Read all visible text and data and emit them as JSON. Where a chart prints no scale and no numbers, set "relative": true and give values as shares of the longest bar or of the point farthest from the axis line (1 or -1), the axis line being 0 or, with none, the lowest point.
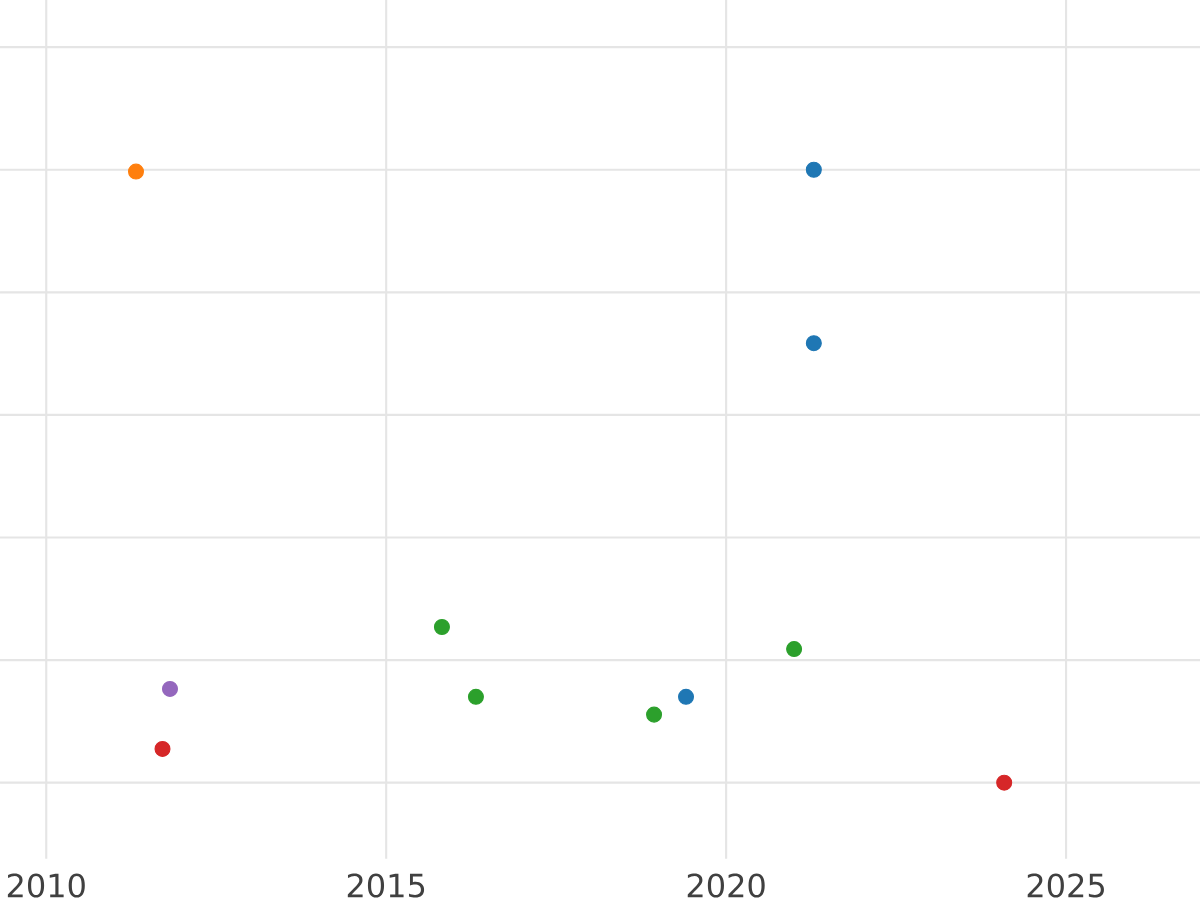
{
  "chart_data": {
    "type": "scatter",
    "relative": true,
    "xlim": [
      2009.32,
      2026.97
    ],
    "xticks": [
      2010,
      2015,
      2020,
      2025
    ],
    "grid": true,
    "tick_labels": "x",
    "series": [
      {
        "color": "#1f77b4",
        "x": [
          2021.29,
          2021.29,
          2019.41
        ],
        "values": [
          1.0,
          0.717,
          0.14
        ]
      },
      {
        "color": "#ff7f0e",
        "x": [
          2011.32
        ],
        "values": [
          0.997
        ]
      },
      {
        "color": "#2ca02c",
        "x": [
          2015.82,
          2016.32,
          2018.94,
          2021.0
        ],
        "values": [
          0.254,
          0.14,
          0.111,
          0.218
        ]
      },
      {
        "color": "#d62728",
        "x": [
          2011.71,
          2024.09
        ],
        "values": [
          0.055,
          0.0
        ]
      },
      {
        "color": "#9467bd",
        "x": [
          2011.82
        ],
        "values": [
          0.153
        ]
      }
    ]
  }
}
